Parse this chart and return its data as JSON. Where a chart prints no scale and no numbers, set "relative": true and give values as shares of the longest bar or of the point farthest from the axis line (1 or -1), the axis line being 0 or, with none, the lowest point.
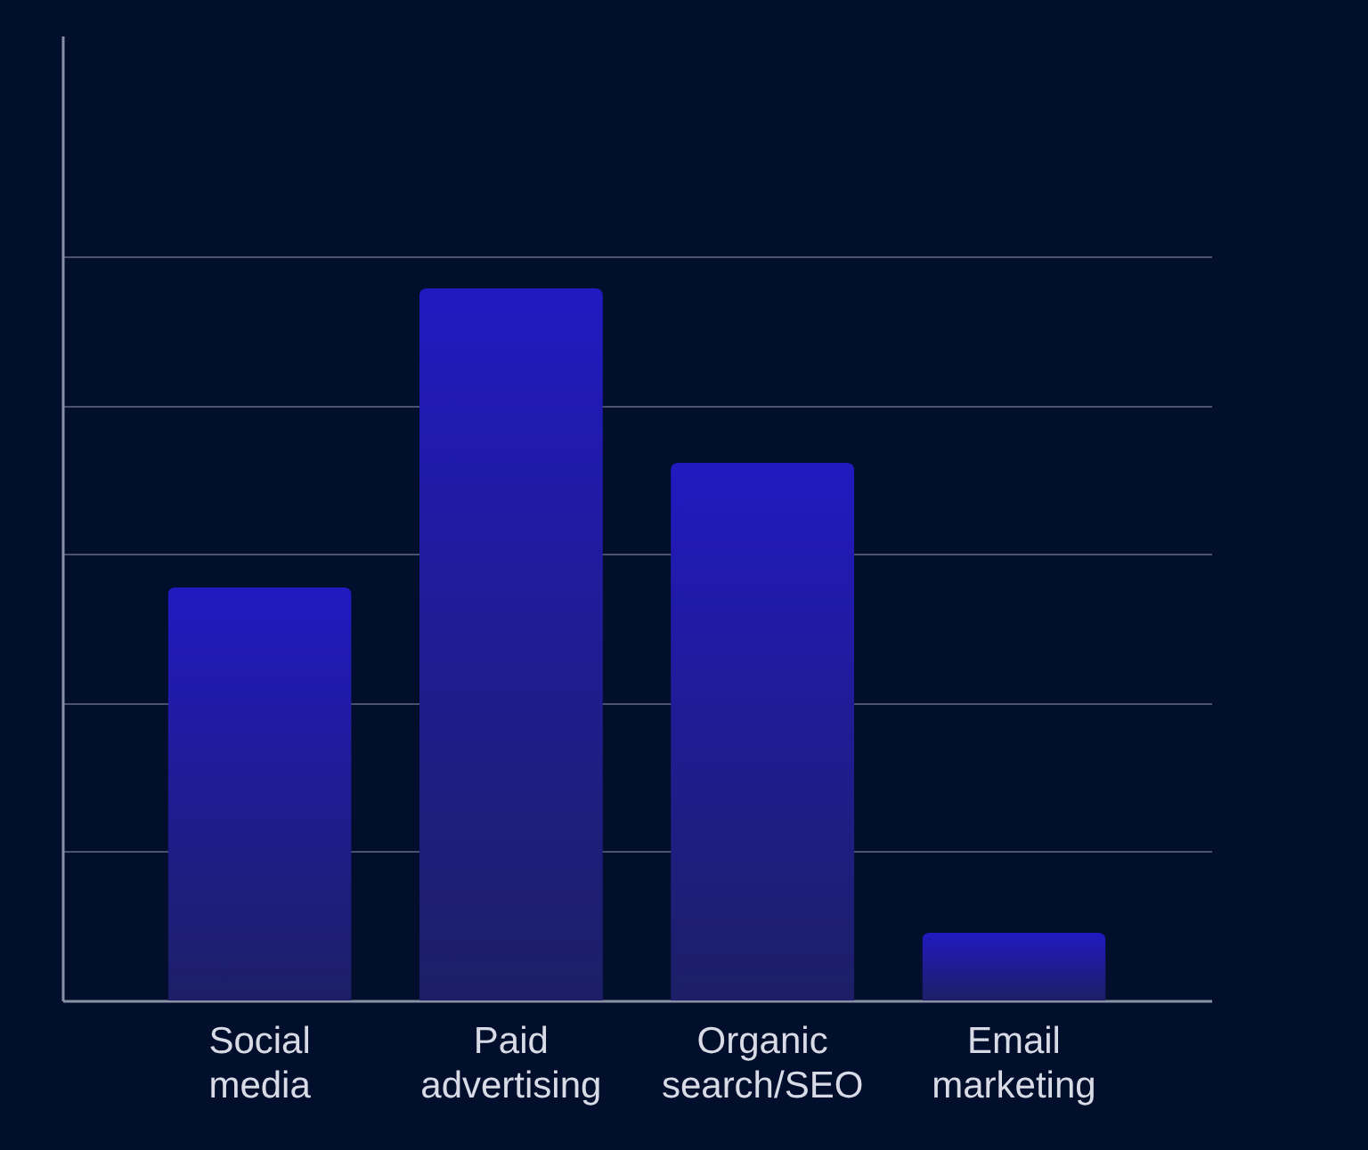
{
  "chart_data": {
    "type": "bar",
    "relative": true,
    "categories": [
      "Social media",
      "Paid advertising",
      "Organic search/SEO",
      "Email marketing"
    ],
    "values": [
      0.58,
      1,
      0.755,
      0.095
    ],
    "color": "#2219c0",
    "grid": "y"
  }
}
